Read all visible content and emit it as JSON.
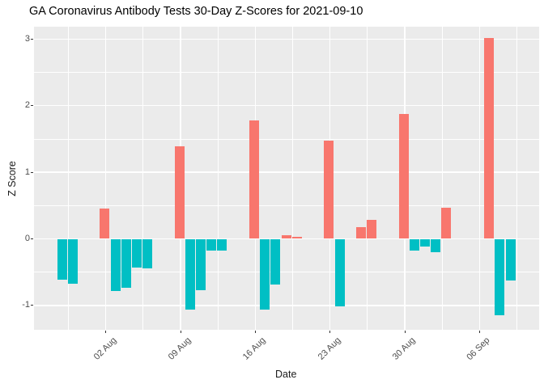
{
  "chart_data": {
    "type": "bar",
    "title": "GA Coronavirus Antibody Tests 30-Day Z-Scores for 2021-09-10",
    "xlabel": "Date",
    "ylabel": "Z Score",
    "legend": "none",
    "grid": true,
    "panel_theme": "gray",
    "ylim": [
      -1.37,
      3.19
    ],
    "y_ticks": [
      {
        "value": 3,
        "label": "3"
      },
      {
        "value": 2,
        "label": "2"
      },
      {
        "value": 1,
        "label": "1"
      },
      {
        "value": 0,
        "label": "0"
      },
      {
        "value": -1,
        "label": "-1"
      }
    ],
    "y_minor_ticks": [
      2.5,
      1.5,
      0.5,
      -0.5
    ],
    "x_ticks": [
      {
        "date": "2021-08-02",
        "label": "02 Aug"
      },
      {
        "date": "2021-08-09",
        "label": "09 Aug"
      },
      {
        "date": "2021-08-16",
        "label": "16 Aug"
      },
      {
        "date": "2021-08-23",
        "label": "23 Aug"
      },
      {
        "date": "2021-08-30",
        "label": "30 Aug"
      },
      {
        "date": "2021-09-06",
        "label": "06 Sep"
      }
    ],
    "bars": [
      {
        "date": "2021-07-29",
        "value": -0.61
      },
      {
        "date": "2021-07-30",
        "value": -0.67
      },
      {
        "date": "2021-08-02",
        "value": 0.45
      },
      {
        "date": "2021-08-03",
        "value": -0.78
      },
      {
        "date": "2021-08-04",
        "value": -0.74
      },
      {
        "date": "2021-08-05",
        "value": -0.43
      },
      {
        "date": "2021-08-06",
        "value": -0.44
      },
      {
        "date": "2021-08-09",
        "value": 1.39
      },
      {
        "date": "2021-08-10",
        "value": -1.06
      },
      {
        "date": "2021-08-11",
        "value": -0.77
      },
      {
        "date": "2021-08-12",
        "value": -0.18
      },
      {
        "date": "2021-08-13",
        "value": -0.17
      },
      {
        "date": "2021-08-16",
        "value": 1.78
      },
      {
        "date": "2021-08-17",
        "value": -1.06
      },
      {
        "date": "2021-08-18",
        "value": -0.69
      },
      {
        "date": "2021-08-19",
        "value": 0.06
      },
      {
        "date": "2021-08-20",
        "value": 0.03
      },
      {
        "date": "2021-08-23",
        "value": 1.48
      },
      {
        "date": "2021-08-24",
        "value": -1.01
      },
      {
        "date": "2021-08-25",
        "value": 0.0
      },
      {
        "date": "2021-08-26",
        "value": 0.17
      },
      {
        "date": "2021-08-27",
        "value": 0.28
      },
      {
        "date": "2021-08-30",
        "value": 1.87
      },
      {
        "date": "2021-08-31",
        "value": -0.17
      },
      {
        "date": "2021-09-01",
        "value": -0.11
      },
      {
        "date": "2021-09-02",
        "value": -0.2
      },
      {
        "date": "2021-09-03",
        "value": 0.47
      },
      {
        "date": "2021-09-07",
        "value": 3.01
      },
      {
        "date": "2021-09-08",
        "value": -1.15
      },
      {
        "date": "2021-09-09",
        "value": -0.63
      }
    ],
    "colors": {
      "positive_bar": "#F8766D",
      "negative_bar": "#00BFC4",
      "panel_background": "#EBEBEB",
      "gridline": "#FFFFFF",
      "tick_text": "#4D4D4D",
      "axis_title_text": "#1A1A1A",
      "title_text": "#000000",
      "tick_mark": "#333333"
    }
  }
}
